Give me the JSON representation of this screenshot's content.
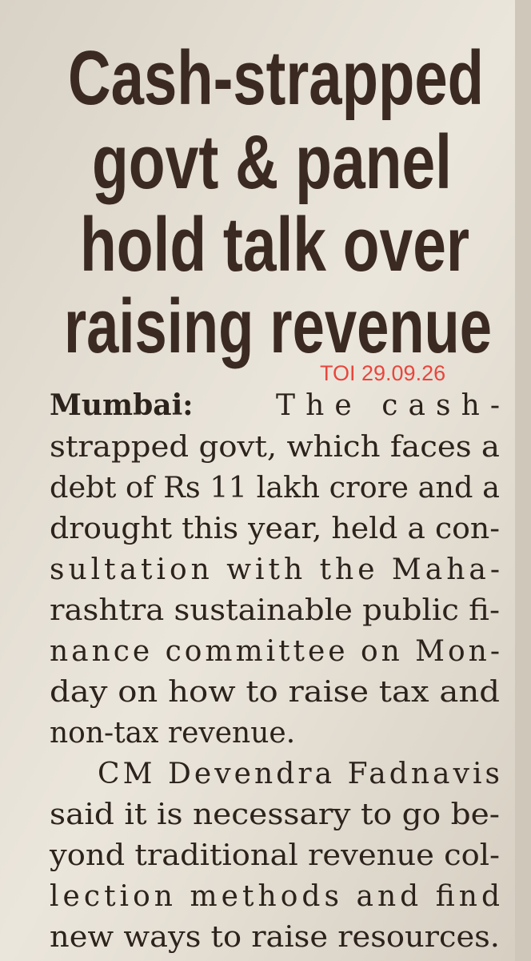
{
  "headline": {
    "lines": [
      "Cash-strapped",
      "govt & panel",
      "hold talk over",
      "raising revenue"
    ]
  },
  "stamp": "TOI 29.09.26",
  "article": {
    "dateline": "Mumbai:",
    "paragraphs": [
      {
        "lines": [
          "The cash-",
          "strapped govt, which faces a",
          "debt of Rs 11 lakh crore and a",
          "drought this year, held a con-",
          "sultation with the Maha-",
          "rashtra sustainable public fi-",
          "nance committee on Mon-",
          "day on how to raise tax and",
          "non-tax revenue."
        ]
      },
      {
        "lines": [
          "CM Devendra Fadnavis",
          "said it is necessary to go be-",
          "yond traditional revenue col-",
          "lection methods and find",
          "new ways to raise resources."
        ]
      }
    ]
  }
}
